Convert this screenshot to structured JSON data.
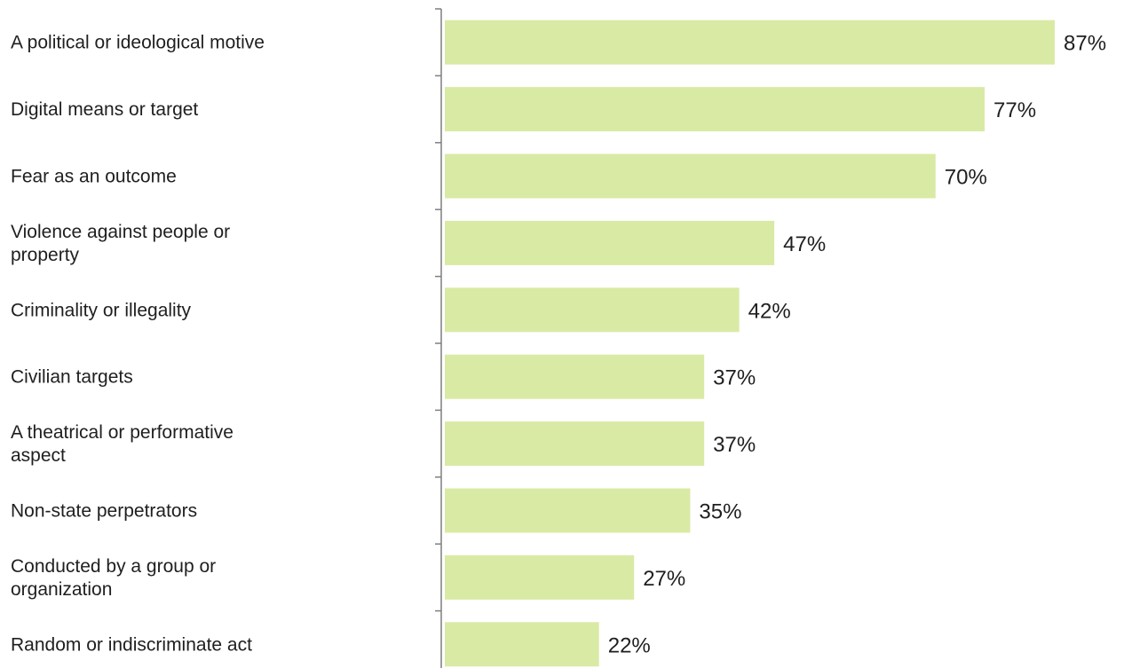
{
  "chart_data": {
    "type": "bar",
    "orientation": "horizontal",
    "categories": [
      [
        "A political or ideological motive"
      ],
      [
        "Digital means or target"
      ],
      [
        "Fear as an outcome"
      ],
      [
        "Violence against people or",
        "property"
      ],
      [
        "Criminality or illegality"
      ],
      [
        "Civilian targets"
      ],
      [
        "A theatrical or performative",
        "aspect"
      ],
      [
        "Non-state perpetrators"
      ],
      [
        "Conducted by a group or",
        "organization"
      ],
      [
        "Random or indiscriminate act"
      ]
    ],
    "values": [
      87,
      77,
      70,
      47,
      42,
      37,
      37,
      35,
      27,
      22
    ],
    "value_labels": [
      "87%",
      "77%",
      "70%",
      "47%",
      "42%",
      "37%",
      "37%",
      "35%",
      "27%",
      "22%"
    ],
    "xlim": [
      0,
      87
    ],
    "grid": false,
    "legend": "none",
    "bar_color": "#d9eaa5",
    "axis_color": "#7f7f7f"
  }
}
